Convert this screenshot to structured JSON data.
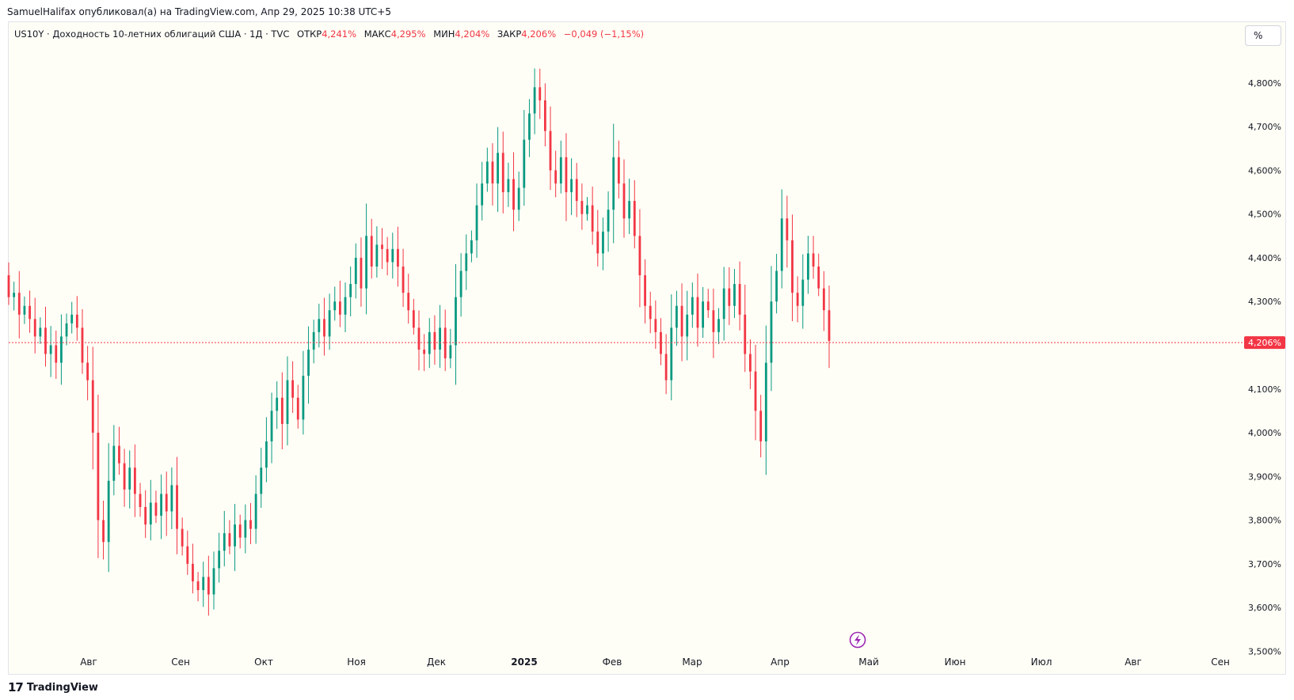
{
  "header": {
    "published_line": "SamuelHalifax опубликовал(а) на TradingView.com, Апр 29, 2025 10:38 UTC+5"
  },
  "legend": {
    "symbol": "US10Y · Доходность 10-летних облигаций США · 1Д · TVC",
    "open_label": "ОТКР",
    "open_value": "4,241%",
    "high_label": "МАКС",
    "high_value": "4,295%",
    "low_label": "МИН",
    "low_value": "4,204%",
    "close_label": "ЗАКР",
    "close_value": "4,206%",
    "change": "−0,049 (−1,15%)"
  },
  "toolbar": {
    "percent_button": "%"
  },
  "footer": {
    "logo_glyph": "𝟭𝟳",
    "brand": "TradingView"
  },
  "colors": {
    "up": "#089981",
    "down": "#f23645",
    "background": "#fffef6",
    "price_line": "#f23645",
    "event_icon": "#9c27b0"
  },
  "icons": {
    "event_marker": "lightning-icon"
  },
  "chart_data": {
    "type": "candlestick",
    "symbol": "US10Y",
    "timeframe": "1Д",
    "y_axis_labels": [
      "4,800%",
      "4,700%",
      "4,600%",
      "4,500%",
      "4,400%",
      "4,300%",
      "4,100%",
      "4,000%",
      "3,900%",
      "3,800%",
      "3,700%",
      "3,600%",
      "3,500%"
    ],
    "y_axis_values": [
      4.8,
      4.7,
      4.6,
      4.5,
      4.4,
      4.3,
      4.1,
      4.0,
      3.9,
      3.8,
      3.7,
      3.6,
      3.5
    ],
    "ylim": [
      3.47,
      4.91
    ],
    "x_axis_labels": [
      "Авг",
      "Сен",
      "Окт",
      "Ноя",
      "Дек",
      "2025",
      "Фев",
      "Мар",
      "Апр",
      "Май",
      "Июн",
      "Июл",
      "Авг",
      "Сен"
    ],
    "last_price": 4.206,
    "last_price_label": "4,206%",
    "close_path": [
      4.31,
      4.32,
      4.27,
      4.29,
      4.26,
      4.22,
      4.24,
      4.18,
      4.2,
      4.16,
      4.22,
      4.25,
      4.27,
      4.24,
      4.16,
      4.12,
      4.0,
      3.8,
      3.75,
      3.89,
      3.97,
      3.93,
      3.87,
      3.92,
      3.86,
      3.83,
      3.79,
      3.84,
      3.81,
      3.86,
      3.82,
      3.88,
      3.78,
      3.74,
      3.7,
      3.66,
      3.64,
      3.67,
      3.63,
      3.69,
      3.73,
      3.77,
      3.74,
      3.79,
      3.76,
      3.8,
      3.78,
      3.86,
      3.92,
      3.98,
      4.05,
      4.08,
      4.02,
      4.12,
      4.08,
      4.03,
      4.13,
      4.19,
      4.23,
      4.26,
      4.22,
      4.28,
      4.3,
      4.27,
      4.31,
      4.34,
      4.4,
      4.33,
      4.45,
      4.38,
      4.43,
      4.42,
      4.39,
      4.42,
      4.38,
      4.32,
      4.28,
      4.24,
      4.19,
      4.18,
      4.23,
      4.19,
      4.24,
      4.17,
      4.2,
      4.31,
      4.37,
      4.41,
      4.44,
      4.52,
      4.57,
      4.62,
      4.57,
      4.64,
      4.55,
      4.58,
      4.51,
      4.56,
      4.67,
      4.73,
      4.79,
      4.76,
      4.69,
      4.6,
      4.57,
      4.63,
      4.55,
      4.58,
      4.53,
      4.5,
      4.52,
      4.46,
      4.41,
      4.46,
      4.51,
      4.63,
      4.57,
      4.49,
      4.53,
      4.45,
      4.36,
      4.29,
      4.26,
      4.23,
      4.18,
      4.12,
      4.24,
      4.29,
      4.22,
      4.27,
      4.31,
      4.24,
      4.3,
      4.28,
      4.23,
      4.26,
      4.33,
      4.29,
      4.34,
      4.27,
      4.18,
      4.14,
      4.05,
      3.98,
      4.16,
      4.3,
      4.37,
      4.49,
      4.44,
      4.32,
      4.29,
      4.35,
      4.41,
      4.38,
      4.33,
      4.28,
      4.21
    ]
  }
}
